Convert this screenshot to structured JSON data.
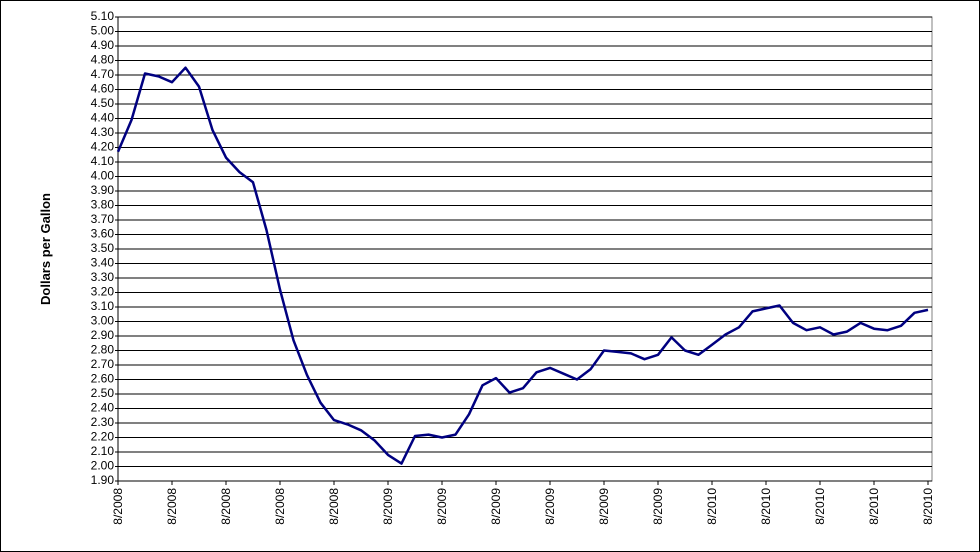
{
  "chart_data": {
    "type": "line",
    "y_label": "Dollars per Gallon",
    "categories": [
      "8/2008",
      null,
      null,
      null,
      "8/2008",
      null,
      null,
      null,
      "8/2008",
      null,
      null,
      null,
      "8/2008",
      null,
      null,
      null,
      "8/2008",
      null,
      null,
      null,
      "8/2009",
      null,
      null,
      null,
      "8/2009",
      null,
      null,
      null,
      "8/2009",
      null,
      null,
      null,
      "8/2009",
      null,
      null,
      null,
      "8/2009",
      null,
      null,
      null,
      "8/2009",
      null,
      null,
      null,
      "8/2010",
      null,
      null,
      null,
      "8/2010",
      null,
      null,
      null,
      "8/2010",
      null,
      null,
      null,
      "8/2010",
      null,
      null,
      null,
      "8/2010"
    ],
    "series": [
      {
        "color": "#000080",
        "values": [
          4.17,
          4.39,
          4.71,
          4.69,
          4.65,
          4.75,
          4.62,
          4.32,
          4.13,
          4.03,
          3.96,
          3.63,
          3.22,
          2.87,
          2.63,
          2.44,
          2.32,
          2.29,
          2.25,
          2.18,
          2.08,
          2.02,
          2.21,
          2.22,
          2.2,
          2.22,
          2.36,
          2.56,
          2.61,
          2.51,
          2.54,
          2.65,
          2.68,
          2.64,
          2.6,
          2.67,
          2.8,
          2.79,
          2.78,
          2.74,
          2.77,
          2.89,
          2.8,
          2.77,
          2.84,
          2.91,
          2.96,
          3.07,
          3.09,
          3.11,
          2.99,
          2.94,
          2.96,
          2.91,
          2.93,
          2.99,
          2.95,
          2.94,
          2.97,
          3.06,
          3.08
        ]
      }
    ],
    "ylim": [
      1.9,
      5.1
    ],
    "yticks": [
      {
        "value": 1.9,
        "label": "1.90"
      },
      {
        "value": 2.0,
        "label": "2.00"
      },
      {
        "value": 2.1,
        "label": "2.10"
      },
      {
        "value": 2.2,
        "label": "2.20"
      },
      {
        "value": 2.3,
        "label": "2.30"
      },
      {
        "value": 2.4,
        "label": "2.40"
      },
      {
        "value": 2.5,
        "label": "2.50"
      },
      {
        "value": 2.6,
        "label": "2.60"
      },
      {
        "value": 2.7,
        "label": "2.70"
      },
      {
        "value": 2.8,
        "label": "2.80"
      },
      {
        "value": 2.9,
        "label": "2.90"
      },
      {
        "value": 3.0,
        "label": "3.00"
      },
      {
        "value": 3.1,
        "label": "3.10"
      },
      {
        "value": 3.2,
        "label": "3.20"
      },
      {
        "value": 3.3,
        "label": "3.30"
      },
      {
        "value": 3.4,
        "label": "3.40"
      },
      {
        "value": 3.5,
        "label": "3.50"
      },
      {
        "value": 3.6,
        "label": "3.60"
      },
      {
        "value": 3.7,
        "label": "3.70"
      },
      {
        "value": 3.8,
        "label": "3.80"
      },
      {
        "value": 3.9,
        "label": "3.90"
      },
      {
        "value": 4.0,
        "label": "4.00"
      },
      {
        "value": 4.1,
        "label": "4.10"
      },
      {
        "value": 4.2,
        "label": "4.20"
      },
      {
        "value": 4.3,
        "label": "4.30"
      },
      {
        "value": 4.4,
        "label": "4.40"
      },
      {
        "value": 4.5,
        "label": "4.50"
      },
      {
        "value": 4.6,
        "label": "4.60"
      },
      {
        "value": 4.7,
        "label": "4.70"
      },
      {
        "value": 4.8,
        "label": "4.80"
      },
      {
        "value": 4.9,
        "label": "4.90"
      },
      {
        "value": 5.0,
        "label": "5.00"
      },
      {
        "value": 5.1,
        "label": "5.10"
      }
    ],
    "grid": true
  }
}
